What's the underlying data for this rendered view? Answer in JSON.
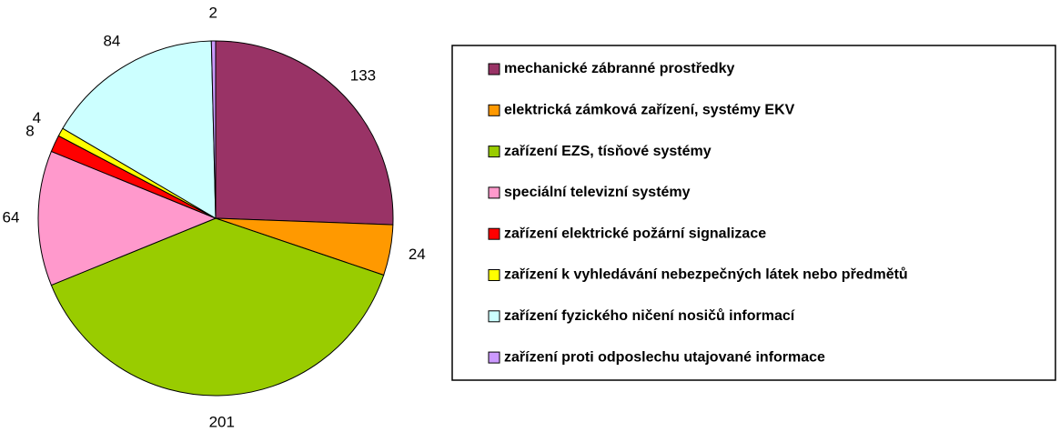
{
  "chart_data": {
    "type": "pie",
    "categories": [
      "mechanické zábranné prostředky",
      "elektrická zámková zařízení, systémy EKV",
      "zařízení EZS, tísňové systémy",
      "speciální televizní systémy",
      "zařízení elektrické požární signalizace",
      "zařízení k vyhledávání nebezpečných látek nebo předmětů",
      "zařízení fyzického ničení nosičů informací",
      "zařízení proti odposlechu utajované informace"
    ],
    "values": [
      133,
      24,
      201,
      64,
      8,
      4,
      84,
      2
    ],
    "colors": [
      "#993366",
      "#FF9900",
      "#99CC00",
      "#FF99CC",
      "#FF0000",
      "#FFFF00",
      "#CCFFFF",
      "#CC99FF"
    ],
    "legend": "right"
  }
}
